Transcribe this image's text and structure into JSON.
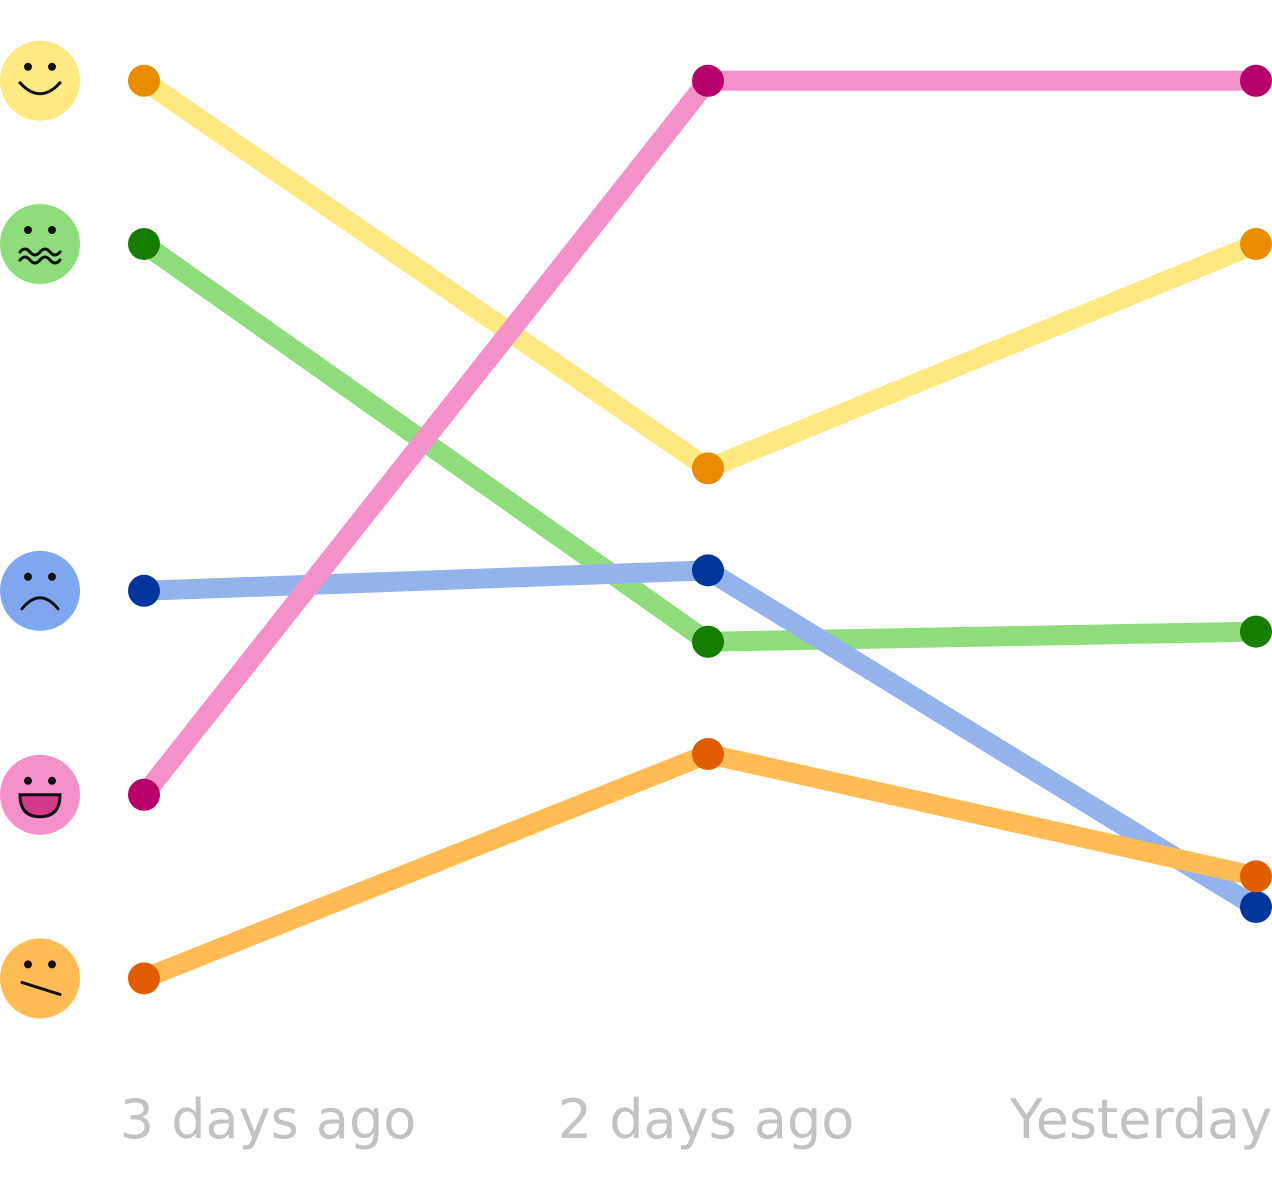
{
  "chart_data": {
    "type": "line",
    "x": [
      "3 days ago",
      "2 days ago",
      "Yesterday"
    ],
    "ylim": [
      0,
      100
    ],
    "grid": false,
    "legend": "none",
    "series": [
      {
        "icon": "happy-face-icon",
        "line_color": "#fde882",
        "point_color": "#e98d00",
        "face_color": "#fde882",
        "values": [
          96,
          58,
          80
        ]
      },
      {
        "icon": "nauseous-face-icon",
        "line_color": "#8fdc7d",
        "point_color": "#157d00",
        "face_color": "#8fdc7d",
        "values": [
          80,
          41,
          42
        ]
      },
      {
        "icon": "sad-face-icon",
        "line_color": "#94b2ec",
        "point_color": "#00369b",
        "face_color": "#7fa7f0",
        "values": [
          46,
          48,
          15
        ]
      },
      {
        "icon": "laughing-face-icon",
        "line_color": "#f491c8",
        "point_color": "#b7006b",
        "face_color": "#f491c8",
        "values": [
          26,
          96,
          96
        ]
      },
      {
        "icon": "meh-face-icon",
        "line_color": "#ffbc55",
        "point_color": "#e05d00",
        "face_color": "#ffbc55",
        "values": [
          8,
          30,
          18
        ]
      }
    ]
  }
}
